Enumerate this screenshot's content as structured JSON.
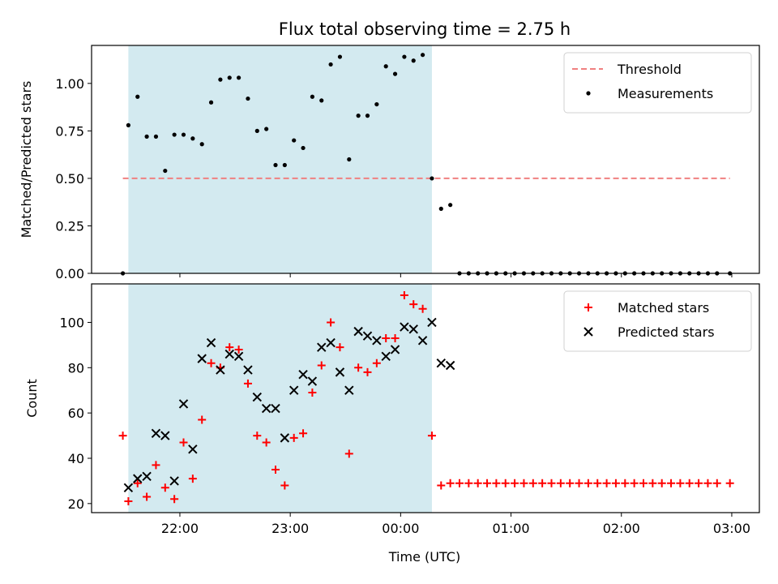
{
  "chart_data": [
    {
      "type": "scatter",
      "title": "Flux total observing time = 2.75 h",
      "xlabel": "",
      "ylabel": "Matched/Predicted stars",
      "ylim": [
        0,
        1.2
      ],
      "yticks": [
        "0.00",
        "0.25",
        "0.50",
        "0.75",
        "1.00"
      ],
      "ytick_values": [
        0,
        0.25,
        0.5,
        0.75,
        1.0
      ],
      "xlim": [
        "21:12",
        "03:15"
      ],
      "xticks": [
        "22:00",
        "23:00",
        "00:00",
        "01:00",
        "02:00",
        "03:00"
      ],
      "shaded_span": {
        "start": "21:32",
        "end": "00:17",
        "color": "#d3eaf0"
      },
      "legend_position": "top-right",
      "threshold": {
        "name": "Threshold",
        "value": 0.5,
        "x_start": "21:29",
        "x_end": "02:59",
        "color": "#f08080"
      },
      "series": [
        {
          "name": "Measurements",
          "marker": "dot",
          "color": "#000000",
          "x": [
            "21:29",
            "21:32",
            "21:37",
            "21:42",
            "21:47",
            "21:52",
            "21:57",
            "22:02",
            "22:07",
            "22:12",
            "22:17",
            "22:22",
            "22:27",
            "22:32",
            "22:37",
            "22:42",
            "22:47",
            "22:52",
            "22:57",
            "23:02",
            "23:07",
            "23:12",
            "23:17",
            "23:22",
            "23:27",
            "23:32",
            "23:37",
            "23:42",
            "23:47",
            "23:52",
            "23:57",
            "00:02",
            "00:07",
            "00:12",
            "00:17",
            "00:22",
            "00:27",
            "00:32",
            "00:37",
            "00:42",
            "00:47",
            "00:52",
            "00:57",
            "01:02",
            "01:07",
            "01:12",
            "01:17",
            "01:22",
            "01:27",
            "01:32",
            "01:37",
            "01:42",
            "01:47",
            "01:52",
            "01:57",
            "02:02",
            "02:07",
            "02:12",
            "02:17",
            "02:22",
            "02:27",
            "02:32",
            "02:37",
            "02:42",
            "02:47",
            "02:52",
            "02:59"
          ],
          "y": [
            0.0,
            0.78,
            0.93,
            0.72,
            0.72,
            0.54,
            0.73,
            0.73,
            0.71,
            0.68,
            0.9,
            1.02,
            1.03,
            1.03,
            0.92,
            0.75,
            0.76,
            0.57,
            0.57,
            0.7,
            0.66,
            0.93,
            0.91,
            1.1,
            1.14,
            0.6,
            0.83,
            0.83,
            0.89,
            1.09,
            1.05,
            1.14,
            1.12,
            1.15,
            0.5,
            0.34,
            0.36,
            0.0,
            0.0,
            0.0,
            0.0,
            0.0,
            0.0,
            0.0,
            0.0,
            0.0,
            0.0,
            0.0,
            0.0,
            0.0,
            0.0,
            0.0,
            0.0,
            0.0,
            0.0,
            0.0,
            0.0,
            0.0,
            0.0,
            0.0,
            0.0,
            0.0,
            0.0,
            0.0,
            0.0,
            0.0,
            0.0
          ]
        }
      ]
    },
    {
      "type": "scatter",
      "title": "",
      "xlabel": "Time (UTC)",
      "ylabel": "Count",
      "ylim": [
        16,
        117
      ],
      "yticks": [
        "20",
        "40",
        "60",
        "80",
        "100"
      ],
      "ytick_values": [
        20,
        40,
        60,
        80,
        100
      ],
      "xlim": [
        "21:12",
        "03:15"
      ],
      "xticks": [
        "22:00",
        "23:00",
        "00:00",
        "01:00",
        "02:00",
        "03:00"
      ],
      "shaded_span": {
        "start": "21:32",
        "end": "00:17",
        "color": "#d3eaf0"
      },
      "legend_position": "top-right",
      "series": [
        {
          "name": "Matched stars",
          "marker": "plus",
          "color": "#ff0000",
          "x": [
            "21:29",
            "21:32",
            "21:37",
            "21:42",
            "21:47",
            "21:52",
            "21:57",
            "22:02",
            "22:07",
            "22:12",
            "22:17",
            "22:22",
            "22:27",
            "22:32",
            "22:37",
            "22:42",
            "22:47",
            "22:52",
            "22:57",
            "23:02",
            "23:07",
            "23:12",
            "23:17",
            "23:22",
            "23:27",
            "23:32",
            "23:37",
            "23:42",
            "23:47",
            "23:52",
            "23:57",
            "00:02",
            "00:07",
            "00:12",
            "00:17",
            "00:22",
            "00:27",
            "00:32",
            "00:37",
            "00:42",
            "00:47",
            "00:52",
            "00:57",
            "01:02",
            "01:07",
            "01:12",
            "01:17",
            "01:22",
            "01:27",
            "01:32",
            "01:37",
            "01:42",
            "01:47",
            "01:52",
            "01:57",
            "02:02",
            "02:07",
            "02:12",
            "02:17",
            "02:22",
            "02:27",
            "02:32",
            "02:37",
            "02:42",
            "02:47",
            "02:52",
            "02:59"
          ],
          "y": [
            50,
            21,
            29,
            23,
            37,
            27,
            22,
            47,
            31,
            57,
            82,
            80,
            89,
            88,
            73,
            50,
            47,
            35,
            28,
            49,
            51,
            69,
            81,
            100,
            89,
            42,
            80,
            78,
            82,
            93,
            93,
            112,
            108,
            106,
            50,
            28,
            29,
            29,
            29,
            29,
            29,
            29,
            29,
            29,
            29,
            29,
            29,
            29,
            29,
            29,
            29,
            29,
            29,
            29,
            29,
            29,
            29,
            29,
            29,
            29,
            29,
            29,
            29,
            29,
            29,
            29,
            29
          ]
        },
        {
          "name": "Predicted stars",
          "marker": "x",
          "color": "#000000",
          "x": [
            "21:32",
            "21:37",
            "21:42",
            "21:47",
            "21:52",
            "21:57",
            "22:02",
            "22:07",
            "22:12",
            "22:17",
            "22:22",
            "22:27",
            "22:32",
            "22:37",
            "22:42",
            "22:47",
            "22:52",
            "22:57",
            "23:02",
            "23:07",
            "23:12",
            "23:17",
            "23:22",
            "23:27",
            "23:32",
            "23:37",
            "23:42",
            "23:47",
            "23:52",
            "23:57",
            "00:02",
            "00:07",
            "00:12",
            "00:17",
            "00:22",
            "00:27"
          ],
          "y": [
            27,
            31,
            32,
            51,
            50,
            30,
            64,
            44,
            84,
            91,
            79,
            86,
            85,
            79,
            67,
            62,
            62,
            49,
            70,
            77,
            74,
            89,
            91,
            78,
            70,
            96,
            94,
            92,
            85,
            88,
            98,
            97,
            92,
            100,
            82,
            81
          ]
        }
      ]
    }
  ]
}
